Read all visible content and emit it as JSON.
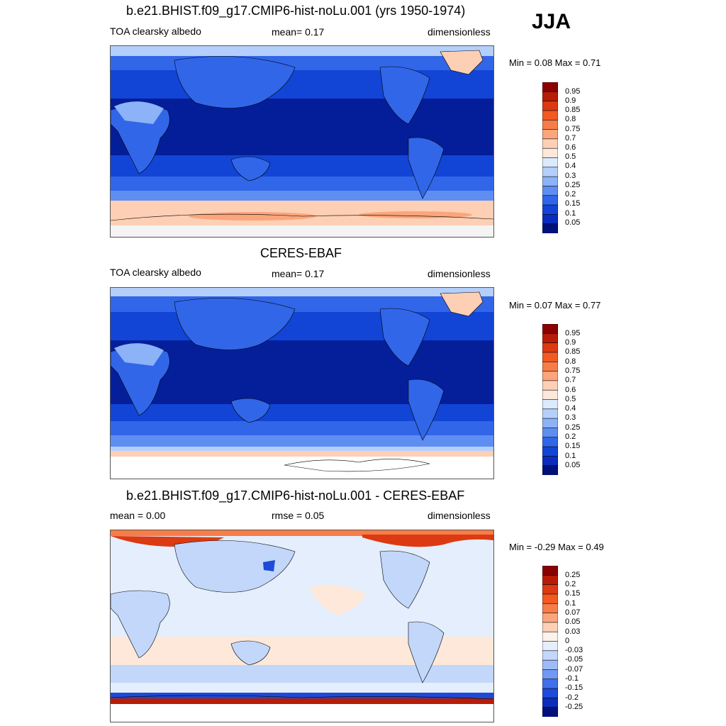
{
  "season": "JJA",
  "panels": [
    {
      "title": "b.e21.BHIST.f09_g17.CMIP6-hist-noLu.001 (yrs 1950-1974)",
      "left_label": "TOA clearsky albedo",
      "center_label": "mean=   0.17",
      "right_label": "dimensionless",
      "minmax": "Min =   0.08 Max =   0.71",
      "min": 0.08,
      "max": 0.71,
      "colorbar": {
        "labels": [
          "0.95",
          "0.9",
          "0.85",
          "0.8",
          "0.75",
          "0.7",
          "0.6",
          "0.5",
          "0.4",
          "0.3",
          "0.25",
          "0.2",
          "0.15",
          "0.1",
          "0.05"
        ],
        "colors": [
          "#8b0000",
          "#b81c06",
          "#dc3a12",
          "#f25a22",
          "#f77d48",
          "#fba57c",
          "#fdcfb4",
          "#fde8da",
          "#dbeafd",
          "#b4cffb",
          "#8cb2f7",
          "#5e8ef1",
          "#3166e8",
          "#1245d6",
          "#0a2dbd",
          "#00117a"
        ]
      }
    },
    {
      "title": "CERES-EBAF",
      "left_label": "TOA clearsky albedo",
      "center_label": "mean=   0.17",
      "right_label": "dimensionless",
      "minmax": "Min =   0.07 Max =   0.77",
      "min": 0.07,
      "max": 0.77,
      "colorbar": {
        "labels": [
          "0.95",
          "0.9",
          "0.85",
          "0.8",
          "0.75",
          "0.7",
          "0.6",
          "0.5",
          "0.4",
          "0.3",
          "0.25",
          "0.2",
          "0.15",
          "0.1",
          "0.05"
        ],
        "colors": [
          "#8b0000",
          "#b81c06",
          "#dc3a12",
          "#f25a22",
          "#f77d48",
          "#fba57c",
          "#fdcfb4",
          "#fde8da",
          "#dbeafd",
          "#b4cffb",
          "#8cb2f7",
          "#5e8ef1",
          "#3166e8",
          "#1245d6",
          "#0a2dbd",
          "#00117a"
        ]
      }
    },
    {
      "title": "b.e21.BHIST.f09_g17.CMIP6-hist-noLu.001 - CERES-EBAF",
      "left_label": "mean =   0.00",
      "center_label": "rmse =   0.05",
      "right_label": "dimensionless",
      "minmax": "Min =  -0.29 Max =   0.49",
      "min": -0.29,
      "max": 0.49,
      "colorbar": {
        "labels": [
          "0.25",
          "0.2",
          "0.15",
          "0.1",
          "0.07",
          "0.05",
          "0.03",
          "0",
          "-0.03",
          "-0.05",
          "-0.07",
          "-0.1",
          "-0.15",
          "-0.2",
          "-0.25"
        ],
        "colors": [
          "#8b0000",
          "#b81c06",
          "#dc3a12",
          "#f25a22",
          "#f77d48",
          "#fba57c",
          "#fdcfb4",
          "#fdf3ea",
          "#e4eefc",
          "#c2d7fa",
          "#9dbcf7",
          "#7198f2",
          "#4270ea",
          "#1d4ad8",
          "#0a2dbd",
          "#00117a"
        ]
      }
    }
  ]
}
